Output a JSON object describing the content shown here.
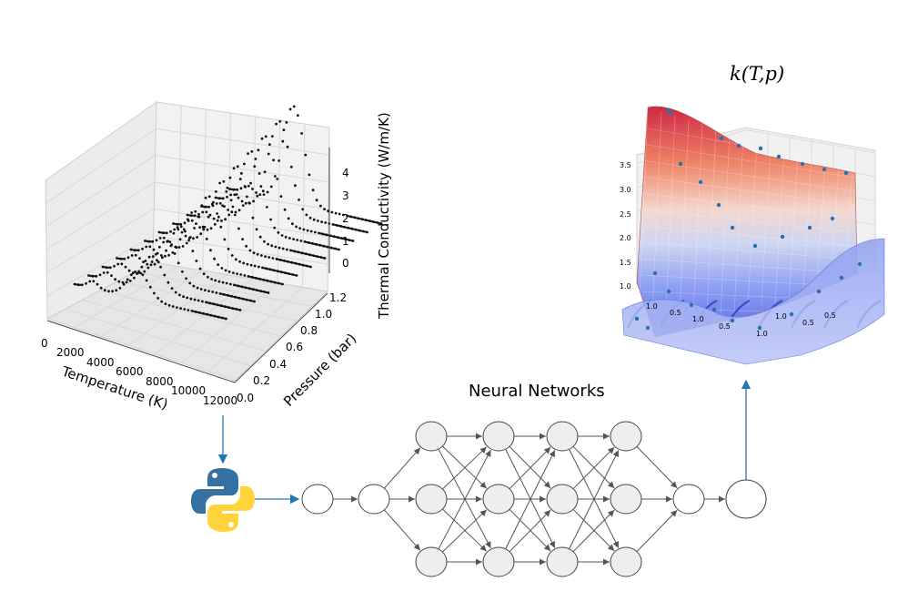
{
  "left_plot": {
    "z_ticks": [
      "0",
      "1",
      "2",
      "3",
      "4"
    ],
    "z_label": "Thermal Conductivity (W/m/K)",
    "x_ticks": [
      "0",
      "2000",
      "4000",
      "6000",
      "8000",
      "10000",
      "12000"
    ],
    "x_label": "Temperature (K)",
    "y_ticks": [
      "0.0",
      "0.2",
      "0.4",
      "0.6",
      "0.8",
      "1.0",
      "1.2"
    ],
    "y_label": "Pressure (bar)"
  },
  "right_plot": {
    "title": "k(T,p)",
    "z_ticks": [
      "1.0",
      "1.5",
      "2.0",
      "2.5",
      "3.0",
      "3.5"
    ],
    "floor_ticks": [
      "1.0",
      "0.5",
      "1.0",
      "0.5",
      "1.0",
      "0.5",
      "1.0",
      "0.5"
    ],
    "colors": {
      "high": "#c8102e",
      "mid": "#f0e0d8",
      "low": "#3b4cc0"
    }
  },
  "network": {
    "title": "Neural Networks",
    "node_fill_hidden": "#eeeeee",
    "node_fill_io": "#ffffff",
    "edge_color": "#555555",
    "flow_arrow_color": "#1f77b4"
  },
  "logo": {
    "name": "python-logo",
    "blue": "#3670a0",
    "yellow": "#ffd43b"
  }
}
